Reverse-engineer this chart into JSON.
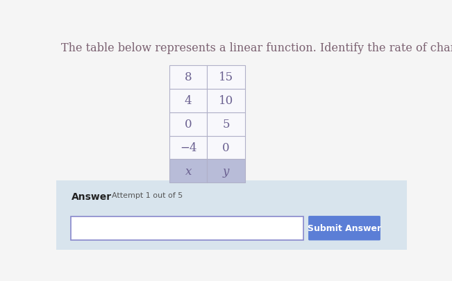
{
  "title": "The table below represents a linear function. Identify the rate of change of the functio",
  "title_color": "#7a6070",
  "title_fontsize": 11.5,
  "bg_color": "#e8e8e8",
  "page_bg_color": "#f5f5f5",
  "answer_bg_color": "#d8e4ed",
  "table_header": [
    "x",
    "y"
  ],
  "table_data": [
    [
      -4,
      0
    ],
    [
      0,
      5
    ],
    [
      4,
      10
    ],
    [
      8,
      15
    ]
  ],
  "table_header_bg": "#b8bcd8",
  "table_cell_bg": "#f8f8fc",
  "table_border_color": "#b0b0c8",
  "table_text_color": "#6a6090",
  "answer_label": "Answer",
  "attempt_label": "Attempt 1 out of 5",
  "submit_btn_text": "Submit Answer",
  "submit_btn_color": "#5b7ed6",
  "submit_btn_text_color": "#ffffff",
  "input_border_color": "#8888cc"
}
